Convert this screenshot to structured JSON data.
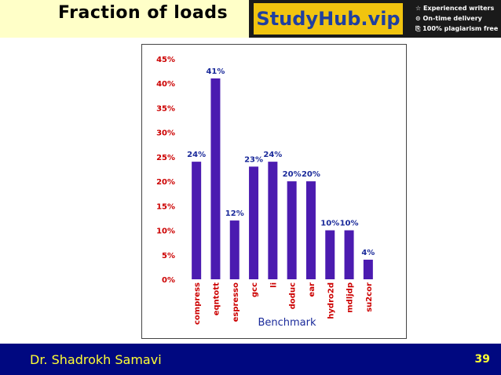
{
  "slide": {
    "title": "Fraction of loads",
    "author": "Dr. Shadrokh Samavi",
    "page_number": "39"
  },
  "brand": {
    "name": "StudyHub.vip",
    "features": [
      "☆ Experienced writers",
      "⊙ On-time delivery",
      "⎘ 100% plagiarism free"
    ]
  },
  "colors": {
    "bar": "#4b1bb0",
    "title_band": "#ffffc8",
    "footer": "#000880",
    "footer_text": "#ffff33"
  },
  "chart_data": {
    "type": "bar",
    "categories": [
      "compress",
      "eqntott",
      "espresso",
      "gcc",
      "li",
      "doduc",
      "ear",
      "hydro2d",
      "mdljdp",
      "su2cor"
    ],
    "values": [
      24,
      41,
      12,
      23,
      24,
      20,
      20,
      10,
      10,
      4
    ],
    "data_labels": [
      "24%",
      "41%",
      "12%",
      "23%",
      "24%",
      "20%",
      "20%",
      "10%",
      "10%",
      "4%"
    ],
    "title": "",
    "xlabel": "Benchmark",
    "ylabel": "",
    "ylim": [
      0,
      45
    ],
    "yticks": [
      "0%",
      "5%",
      "10%",
      "15%",
      "20%",
      "25%",
      "30%",
      "35%",
      "40%",
      "45%"
    ],
    "grid": false,
    "legend": "none"
  }
}
